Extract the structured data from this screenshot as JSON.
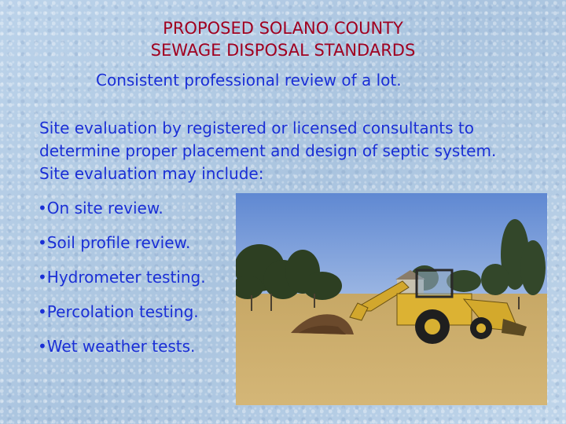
{
  "slide": {
    "title_line1": "PROPOSED SOLANO COUNTY",
    "title_line2": "SEWAGE DISPOSAL STANDARDS",
    "subtitle": "Consistent professional review of a lot.",
    "paragraph": "Site evaluation by registered or licensed consultants to determine proper placement and design of septic system.  Site evaluation may include:",
    "bullets": [
      "•On site review.",
      "•Soil profile review.",
      "•Hydrometer testing.",
      "•Percolation testing.",
      "•Wet weather tests."
    ]
  },
  "colors": {
    "background": "#b9d0e6",
    "title": "#a00020",
    "body_text": "#1a2fd6"
  }
}
